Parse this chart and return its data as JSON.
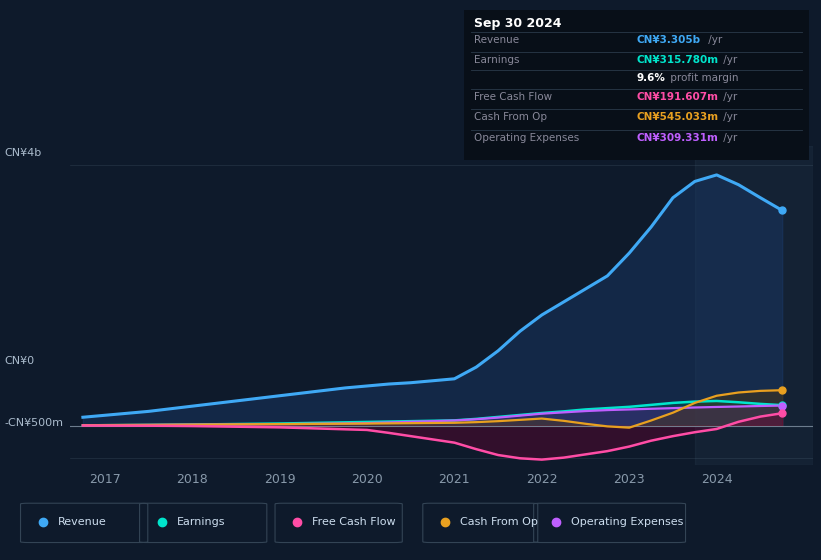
{
  "bg_color": "#0e1a2b",
  "plot_bg_color": "#0e1a2b",
  "title_box": {
    "title": "Sep 30 2024",
    "rows": [
      {
        "label": "Revenue",
        "value": "CN¥3.305b",
        "unit": " /yr",
        "color": "#3fa9f5"
      },
      {
        "label": "Earnings",
        "value": "CN¥315.780m",
        "unit": " /yr",
        "color": "#00e5cc"
      },
      {
        "label": "",
        "value": "9.6%",
        "unit": " profit margin",
        "color": "#ffffff"
      },
      {
        "label": "Free Cash Flow",
        "value": "CN¥191.607m",
        "unit": " /yr",
        "color": "#ff4da6"
      },
      {
        "label": "Cash From Op",
        "value": "CN¥545.033m",
        "unit": " /yr",
        "color": "#e8a020"
      },
      {
        "label": "Operating Expenses",
        "value": "CN¥309.331m",
        "unit": " /yr",
        "color": "#bf5fff"
      }
    ]
  },
  "ylabel_top": "CN¥4b",
  "ylabel_zero": "CN¥0",
  "ylabel_neg": "-CN¥500m",
  "x_ticks": [
    2017,
    2018,
    2019,
    2020,
    2021,
    2022,
    2023,
    2024
  ],
  "ylim": [
    -600000000,
    4300000000
  ],
  "legend": [
    {
      "label": "Revenue",
      "color": "#3fa9f5"
    },
    {
      "label": "Earnings",
      "color": "#00e5cc"
    },
    {
      "label": "Free Cash Flow",
      "color": "#ff4da6"
    },
    {
      "label": "Cash From Op",
      "color": "#e8a020"
    },
    {
      "label": "Operating Expenses",
      "color": "#bf5fff"
    }
  ],
  "series": {
    "x": [
      2016.75,
      2017.0,
      2017.25,
      2017.5,
      2017.75,
      2018.0,
      2018.25,
      2018.5,
      2018.75,
      2019.0,
      2019.25,
      2019.5,
      2019.75,
      2020.0,
      2020.25,
      2020.5,
      2020.75,
      2021.0,
      2021.25,
      2021.5,
      2021.75,
      2022.0,
      2022.25,
      2022.5,
      2022.75,
      2023.0,
      2023.25,
      2023.5,
      2023.75,
      2024.0,
      2024.25,
      2024.5,
      2024.75
    ],
    "revenue": [
      130000000,
      160000000,
      190000000,
      220000000,
      260000000,
      300000000,
      340000000,
      380000000,
      420000000,
      460000000,
      500000000,
      540000000,
      580000000,
      610000000,
      640000000,
      660000000,
      690000000,
      720000000,
      900000000,
      1150000000,
      1450000000,
      1700000000,
      1900000000,
      2100000000,
      2300000000,
      2650000000,
      3050000000,
      3500000000,
      3750000000,
      3850000000,
      3700000000,
      3500000000,
      3305000000
    ],
    "earnings": [
      5000000,
      8000000,
      10000000,
      12000000,
      15000000,
      18000000,
      22000000,
      26000000,
      30000000,
      34000000,
      40000000,
      46000000,
      52000000,
      58000000,
      64000000,
      70000000,
      76000000,
      82000000,
      105000000,
      135000000,
      165000000,
      195000000,
      220000000,
      250000000,
      270000000,
      290000000,
      320000000,
      350000000,
      370000000,
      380000000,
      360000000,
      335000000,
      315780000
    ],
    "free_cash_flow": [
      3000000,
      2000000,
      1000000,
      0,
      -2000000,
      -5000000,
      -10000000,
      -15000000,
      -20000000,
      -25000000,
      -35000000,
      -45000000,
      -55000000,
      -65000000,
      -110000000,
      -160000000,
      -210000000,
      -260000000,
      -360000000,
      -450000000,
      -500000000,
      -520000000,
      -490000000,
      -440000000,
      -390000000,
      -320000000,
      -230000000,
      -160000000,
      -100000000,
      -50000000,
      60000000,
      140000000,
      191607000
    ],
    "cash_from_op": [
      8000000,
      10000000,
      12000000,
      13000000,
      15000000,
      17000000,
      19000000,
      21000000,
      23000000,
      25000000,
      27000000,
      29000000,
      31000000,
      33000000,
      36000000,
      39000000,
      42000000,
      45000000,
      55000000,
      70000000,
      90000000,
      110000000,
      75000000,
      30000000,
      -10000000,
      -30000000,
      80000000,
      200000000,
      350000000,
      460000000,
      510000000,
      535000000,
      545033000
    ],
    "operating_expenses": [
      6000000,
      8000000,
      10000000,
      12000000,
      14000000,
      16000000,
      18000000,
      20000000,
      22000000,
      24000000,
      27000000,
      31000000,
      35000000,
      40000000,
      50000000,
      60000000,
      70000000,
      80000000,
      100000000,
      125000000,
      155000000,
      185000000,
      205000000,
      225000000,
      240000000,
      250000000,
      260000000,
      270000000,
      280000000,
      288000000,
      295000000,
      303000000,
      309331000
    ]
  }
}
